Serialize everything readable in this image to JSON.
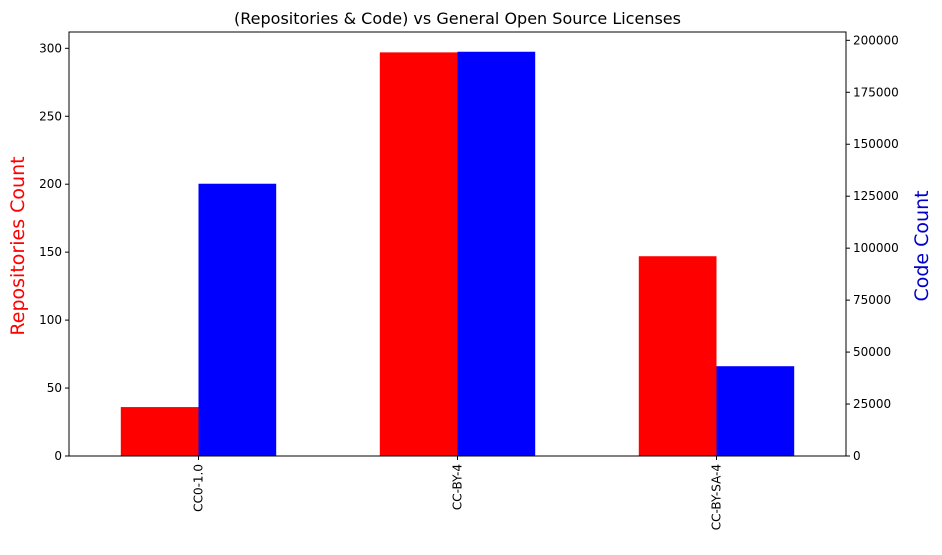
{
  "chart_data": {
    "type": "bar",
    "title": "(Repositories & Code) vs General Open Source Licenses",
    "categories": [
      "CC0-1.0",
      "CC-BY-4",
      "CC-BY-SA-4"
    ],
    "series": [
      {
        "name": "Repositories Count",
        "axis": "left",
        "color": "#ff0000",
        "values": [
          36,
          297,
          147
        ]
      },
      {
        "name": "Code Count",
        "axis": "right",
        "color": "#0000ff",
        "values": [
          131000,
          194500,
          43200
        ]
      }
    ],
    "ylabel": "Repositories Count",
    "ylabel_color": "#ff0000",
    "y2label": "Code Count",
    "y2label_color": "#0000cc",
    "ylim": [
      0,
      312
    ],
    "y2lim": [
      0,
      204000
    ],
    "yticks": [
      0,
      50,
      100,
      150,
      200,
      250,
      300
    ],
    "y2ticks": [
      0,
      25000,
      50000,
      75000,
      100000,
      125000,
      150000,
      175000,
      200000
    ],
    "legend": false,
    "grid": false
  }
}
